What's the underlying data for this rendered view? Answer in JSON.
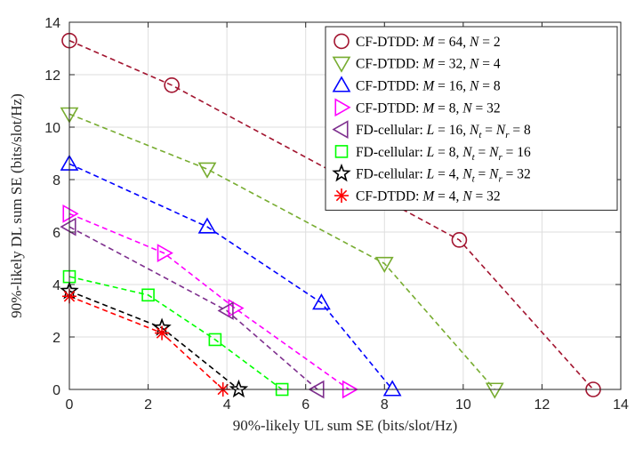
{
  "chart_data": {
    "type": "line",
    "title": "",
    "xlabel": "90%-likely UL sum SE (bits/slot/Hz)",
    "ylabel": "90%-likely DL sum SE (bits/slot/Hz)",
    "xlim": [
      0,
      14
    ],
    "ylim": [
      0,
      14
    ],
    "xticks": [
      "0",
      "2",
      "4",
      "6",
      "8",
      "10",
      "12",
      "14"
    ],
    "yticks": [
      "0",
      "2",
      "4",
      "6",
      "8",
      "10",
      "12",
      "14"
    ],
    "grid": true,
    "legend_position": "top-right",
    "series": [
      {
        "name": "CF-DTDD: M = 64, N = 2",
        "color": "#a2142f",
        "marker": "circle",
        "x": [
          0,
          2.6,
          9.9,
          13.3
        ],
        "y": [
          13.3,
          11.6,
          5.7,
          0
        ]
      },
      {
        "name": "CF-DTDD: M = 32, N = 4",
        "color": "#77ac30",
        "marker": "triangle-down",
        "x": [
          0,
          3.5,
          8.0,
          10.8
        ],
        "y": [
          10.5,
          8.4,
          4.8,
          0
        ]
      },
      {
        "name": "CF-DTDD: M = 16, N = 8",
        "color": "#0000ff",
        "marker": "triangle-up",
        "x": [
          0,
          3.5,
          6.4,
          8.2
        ],
        "y": [
          8.6,
          6.2,
          3.3,
          0
        ]
      },
      {
        "name": "CF-DTDD: M = 8, N = 32",
        "color": "#ff00ff",
        "marker": "triangle-right",
        "x": [
          0,
          2.4,
          4.2,
          7.1
        ],
        "y": [
          6.7,
          5.2,
          3.1,
          0
        ]
      },
      {
        "name": "FD-cellular: L = 16, N_t = N_r = 8",
        "color": "#7e2f8e",
        "marker": "triangle-left",
        "x": [
          0,
          4.0,
          6.3
        ],
        "y": [
          6.2,
          3.0,
          0
        ]
      },
      {
        "name": "FD-cellular: L = 8, N_t = N_r = 16",
        "color": "#00ff00",
        "marker": "square",
        "x": [
          0,
          2.0,
          3.7,
          5.4
        ],
        "y": [
          4.3,
          3.6,
          1.9,
          0
        ]
      },
      {
        "name": "FD-cellular: L = 4, N_t = N_r = 32",
        "color": "#000000",
        "marker": "star",
        "x": [
          0,
          2.35,
          4.3
        ],
        "y": [
          3.75,
          2.35,
          0
        ]
      },
      {
        "name": "CF-DTDD: M = 4, N = 32",
        "color": "#ff0000",
        "marker": "asterisk",
        "x": [
          0,
          2.35,
          3.9
        ],
        "y": [
          3.55,
          2.15,
          0
        ]
      }
    ],
    "legend_entries": [
      {
        "prefix": "CF-DTDD: ",
        "parts": [
          [
            "M",
            "i"
          ],
          [
            " = 64, ",
            "n"
          ],
          [
            "N",
            "i"
          ],
          [
            " = 2",
            "n"
          ]
        ]
      },
      {
        "prefix": "CF-DTDD: ",
        "parts": [
          [
            "M",
            "i"
          ],
          [
            " = 32, ",
            "n"
          ],
          [
            "N",
            "i"
          ],
          [
            " = 4",
            "n"
          ]
        ]
      },
      {
        "prefix": "CF-DTDD: ",
        "parts": [
          [
            "M",
            "i"
          ],
          [
            " = 16, ",
            "n"
          ],
          [
            "N",
            "i"
          ],
          [
            " = 8",
            "n"
          ]
        ]
      },
      {
        "prefix": "CF-DTDD: ",
        "parts": [
          [
            "M",
            "i"
          ],
          [
            " = 8, ",
            "n"
          ],
          [
            "N",
            "i"
          ],
          [
            " = 32",
            "n"
          ]
        ]
      },
      {
        "prefix": "FD-cellular: ",
        "parts": [
          [
            "L",
            "i"
          ],
          [
            " = 16, ",
            "n"
          ],
          [
            "N",
            "i"
          ],
          [
            "t",
            "s"
          ],
          [
            " = ",
            "n"
          ],
          [
            "N",
            "i"
          ],
          [
            "r",
            "s"
          ],
          [
            " = 8",
            "n"
          ]
        ]
      },
      {
        "prefix": "FD-cellular: ",
        "parts": [
          [
            "L",
            "i"
          ],
          [
            " = 8, ",
            "n"
          ],
          [
            "N",
            "i"
          ],
          [
            "t",
            "s"
          ],
          [
            " = ",
            "n"
          ],
          [
            "N",
            "i"
          ],
          [
            "r",
            "s"
          ],
          [
            " = 16",
            "n"
          ]
        ]
      },
      {
        "prefix": "FD-cellular: ",
        "parts": [
          [
            "L",
            "i"
          ],
          [
            " = 4, ",
            "n"
          ],
          [
            "N",
            "i"
          ],
          [
            "t",
            "s"
          ],
          [
            " = ",
            "n"
          ],
          [
            "N",
            "i"
          ],
          [
            "r",
            "s"
          ],
          [
            " = 32",
            "n"
          ]
        ]
      },
      {
        "prefix": "CF-DTDD: ",
        "parts": [
          [
            "M",
            "i"
          ],
          [
            " = 4, ",
            "n"
          ],
          [
            "N",
            "i"
          ],
          [
            " = 32",
            "n"
          ]
        ]
      }
    ]
  }
}
